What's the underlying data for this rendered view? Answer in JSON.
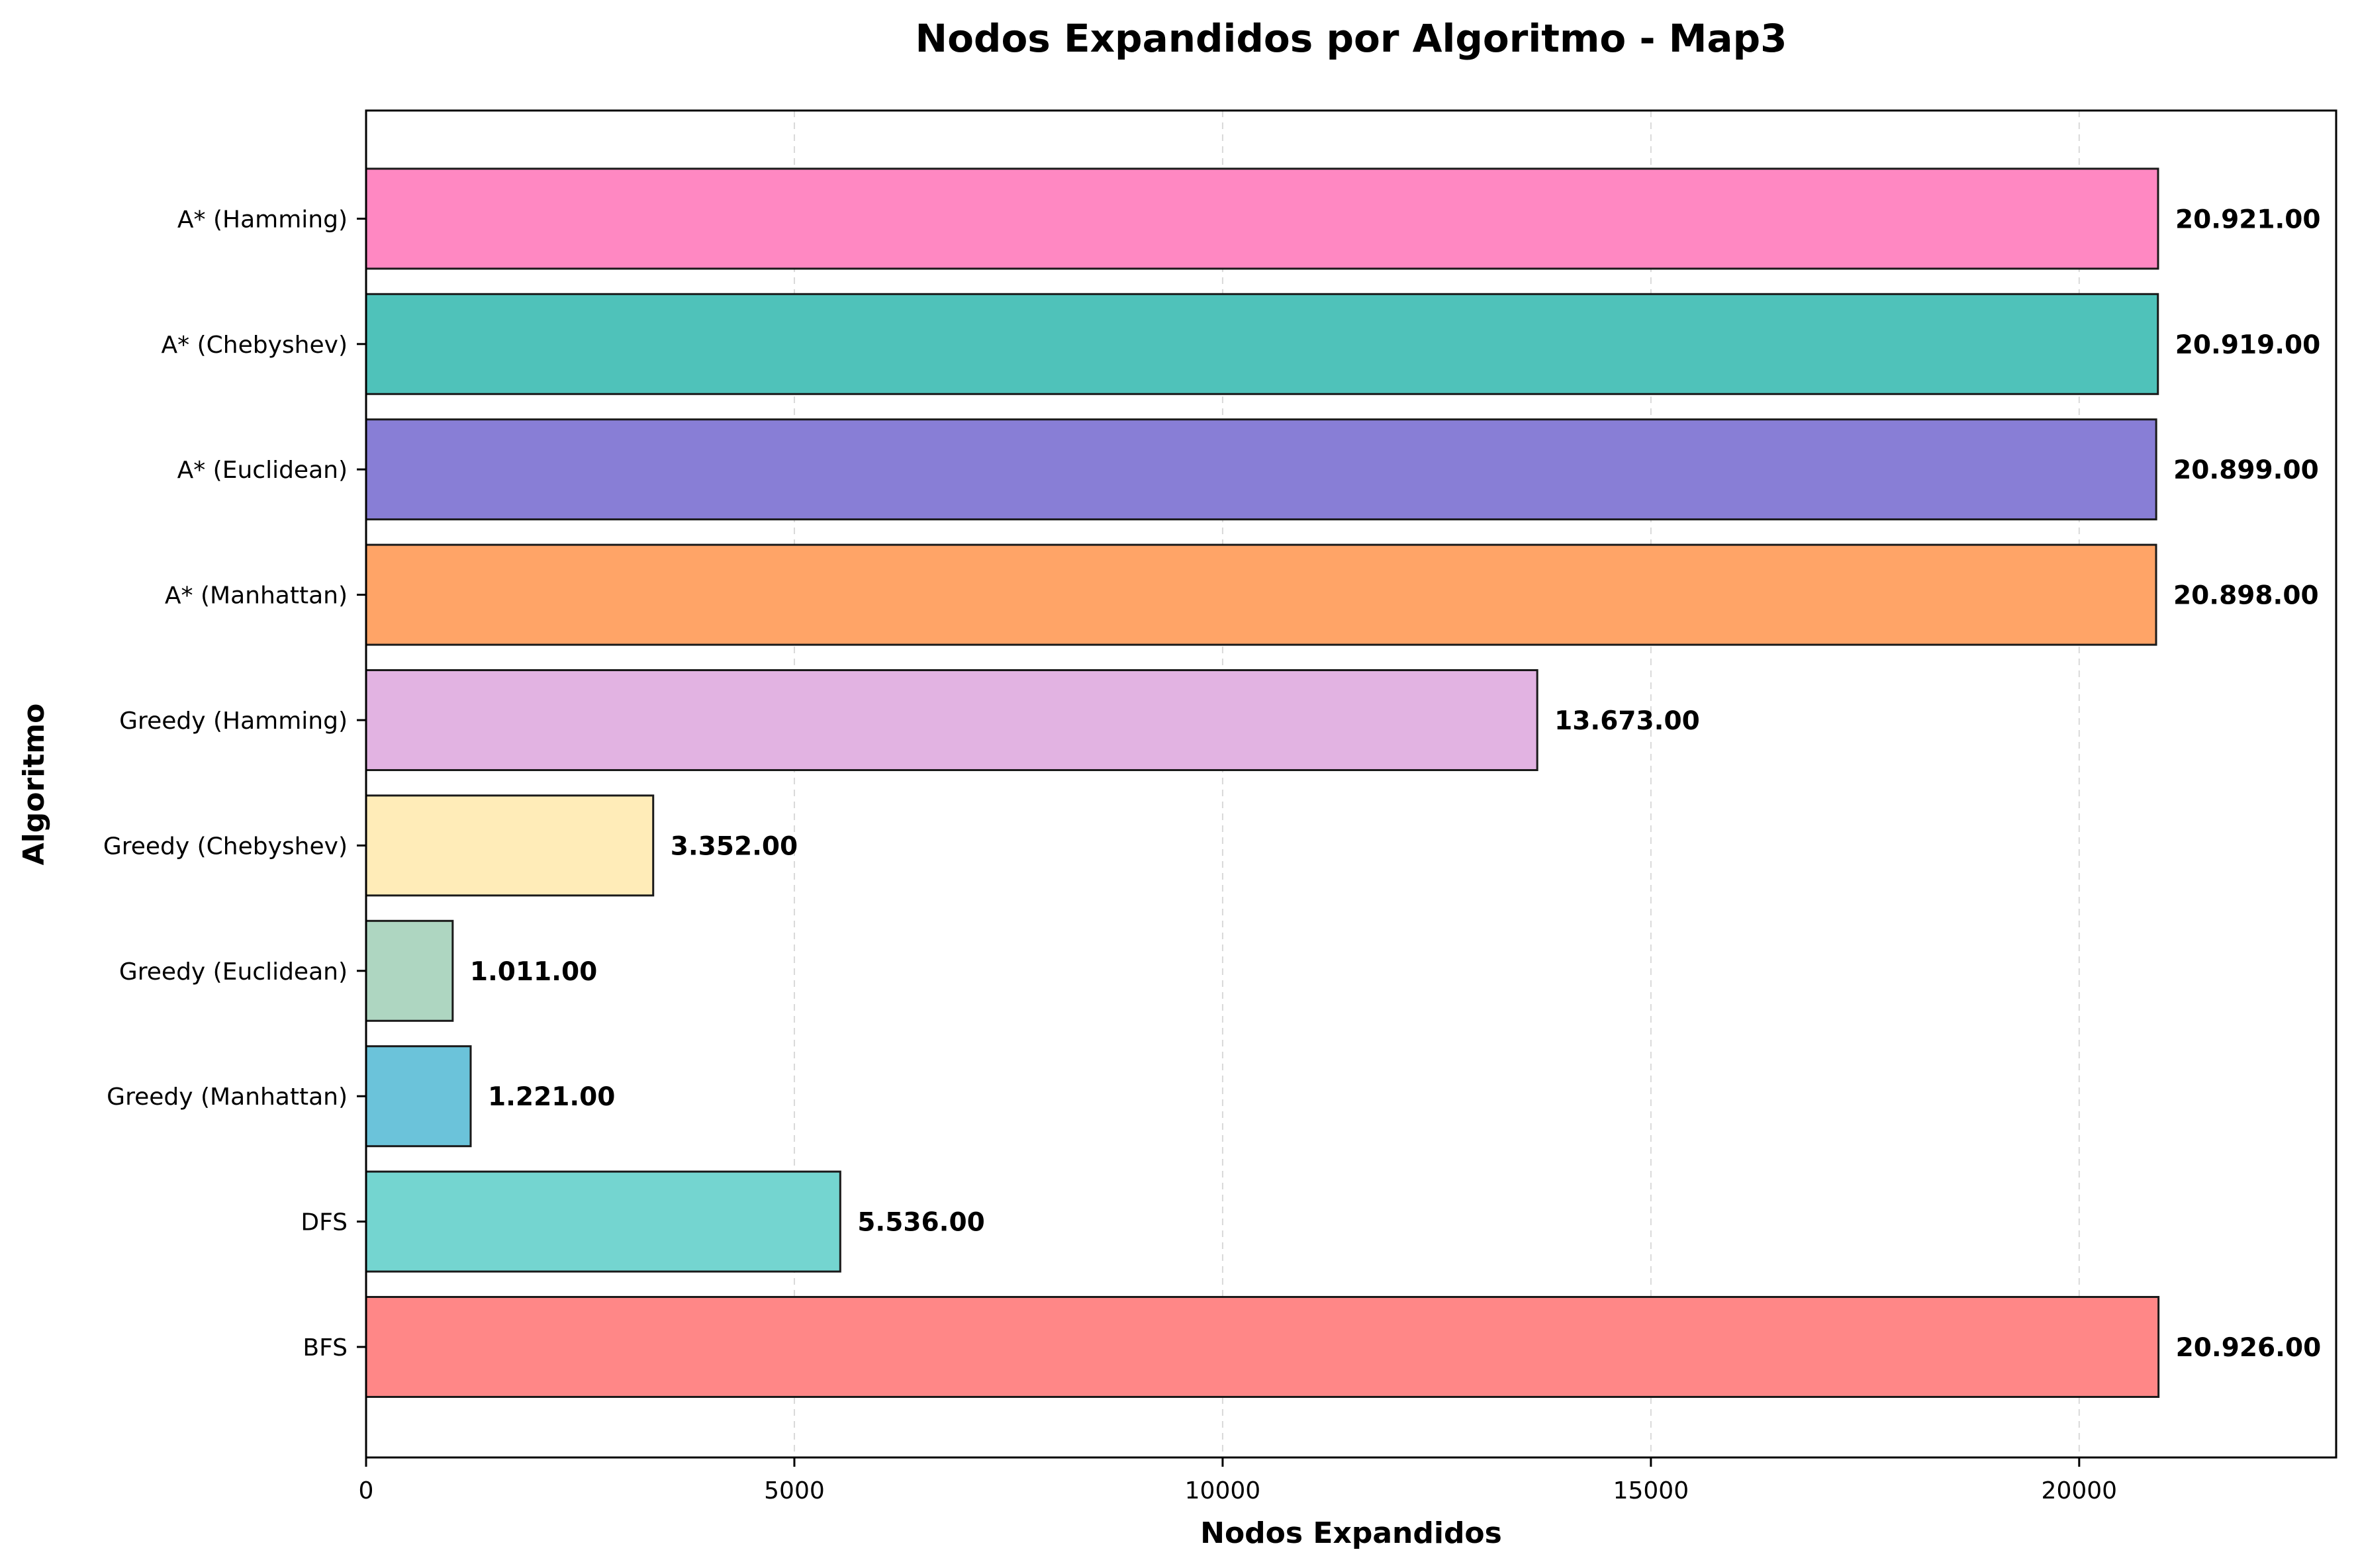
{
  "chart_data": {
    "type": "bar",
    "orientation": "horizontal",
    "title": "Nodos Expandidos por Algoritmo - Map3",
    "xlabel": "Nodos Expandidos",
    "ylabel": "Algoritmo",
    "xlim": [
      0,
      23000
    ],
    "xticks": [
      "0",
      "5000",
      "10000",
      "15000",
      "20000"
    ],
    "x_grid": true,
    "categories": [
      "BFS",
      "DFS",
      "Greedy (Manhattan)",
      "Greedy (Euclidean)",
      "Greedy (Chebyshev)",
      "Greedy (Hamming)",
      "A* (Manhattan)",
      "A* (Euclidean)",
      "A* (Chebyshev)",
      "A* (Hamming)"
    ],
    "values": [
      20926,
      5536,
      1221,
      1011,
      3352,
      13673,
      20898,
      20899,
      20919,
      20921
    ],
    "value_labels": [
      "20.926.00",
      "5.536.00",
      "1.221.00",
      "1.011.00",
      "3.352.00",
      "13.673.00",
      "20.898.00",
      "20.899.00",
      "20.919.00",
      "20.921.00"
    ],
    "colors": [
      "#ff8787",
      "#74d5d0",
      "#6bc3da",
      "#aed6c1",
      "#ffecb8",
      "#e2b3e2",
      "#ffa467",
      "#887ed6",
      "#4fc2ba",
      "#ff88c2"
    ]
  }
}
